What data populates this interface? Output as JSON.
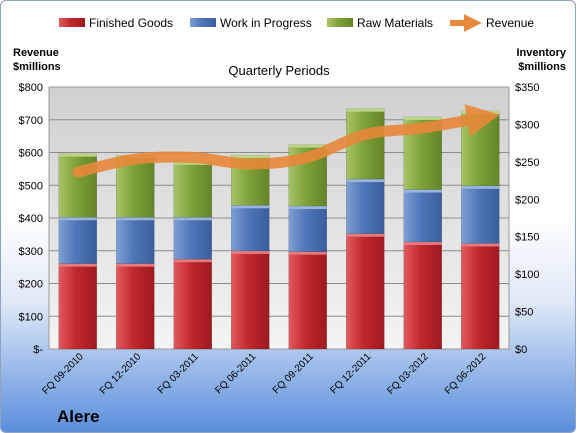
{
  "chart_data": {
    "type": "bar",
    "stacked": true,
    "title": "Quarterly Periods",
    "company": "Alere",
    "ylabel_left": [
      "Revenue",
      "$millions"
    ],
    "ylabel_right": [
      "Inventory",
      "$millions"
    ],
    "categories": [
      "FQ 09-2010",
      "FQ 12-2010",
      "FQ 03-2011",
      "FQ 06-2011",
      "FQ 09-2011",
      "FQ 12-2011",
      "FQ 03-2012",
      "FQ 06-2012"
    ],
    "left_axis": {
      "min": 0,
      "max": 800,
      "step": 100,
      "tick_labels": [
        "$-",
        "$100",
        "$200",
        "$300",
        "$400",
        "$500",
        "$600",
        "$700",
        "$800"
      ]
    },
    "right_axis": {
      "min": 0,
      "max": 350,
      "step": 50,
      "tick_labels": [
        "$0",
        "$50",
        "$100",
        "$150",
        "$200",
        "$250",
        "$300",
        "$350"
      ]
    },
    "series": [
      {
        "name": "Finished Goods",
        "color": "#c0282d",
        "axis": "right",
        "values": [
          114,
          114,
          120,
          131,
          130,
          154,
          143,
          141
        ]
      },
      {
        "name": "Work in Progress",
        "color": "#4f76b8",
        "axis": "right",
        "values": [
          62,
          62,
          56,
          61,
          61,
          73,
          70,
          77
        ]
      },
      {
        "name": "Raw Materials",
        "color": "#7fa23a",
        "axis": "right",
        "values": [
          85,
          83,
          74,
          67,
          82,
          94,
          97,
          100
        ]
      }
    ],
    "revenue": {
      "name": "Revenue",
      "color": "#e8883a",
      "axis": "left",
      "values": [
        540,
        580,
        585,
        565,
        585,
        655,
        675,
        705
      ]
    },
    "grid": true,
    "legend_position": "top"
  }
}
